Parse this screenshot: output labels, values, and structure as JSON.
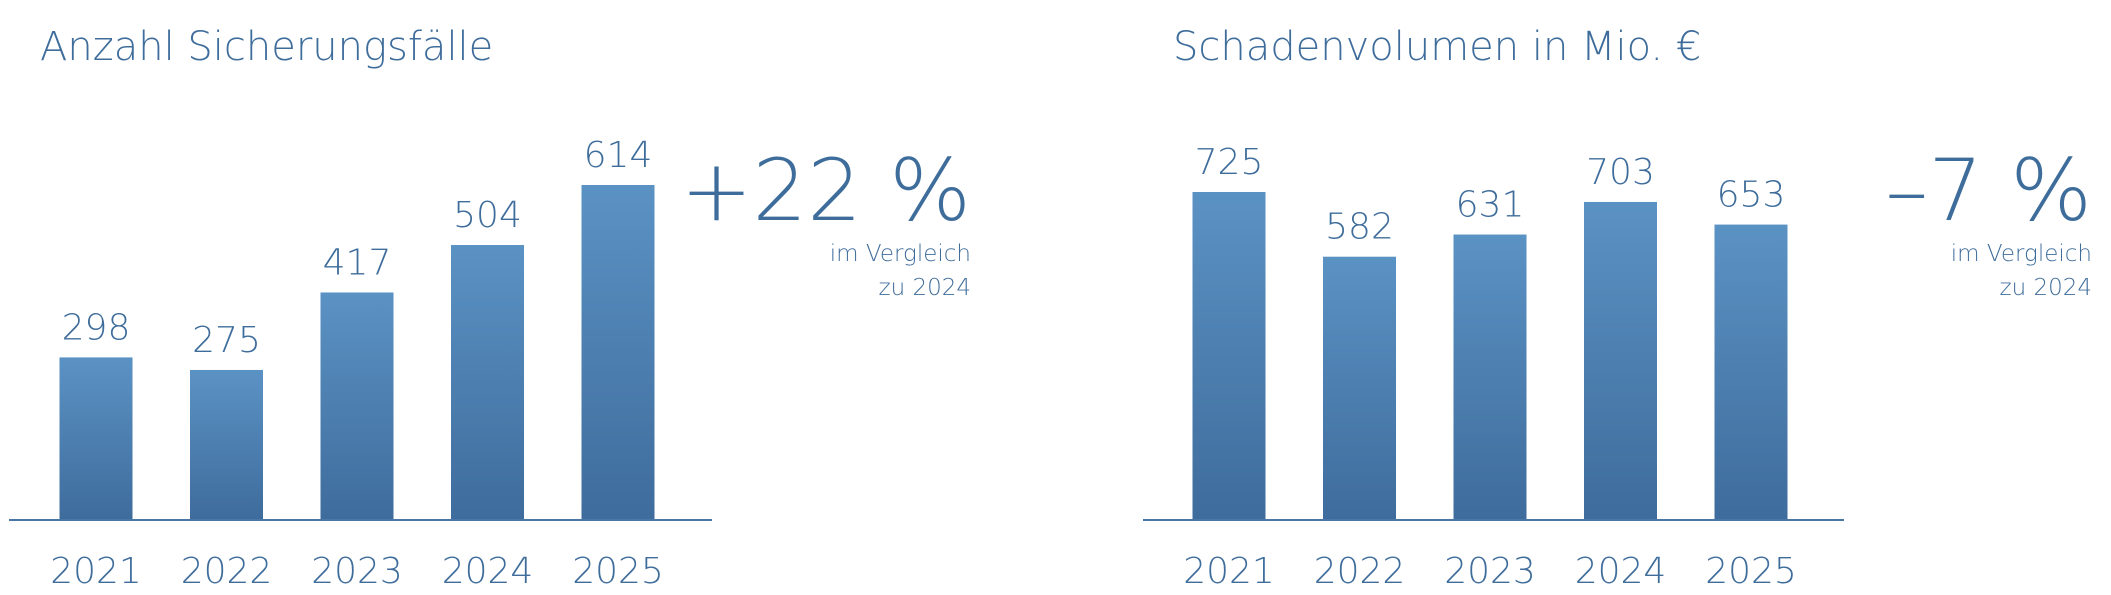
{
  "chart_data": [
    {
      "type": "bar",
      "title": "Anzahl Sicherungsfälle",
      "categories": [
        "2021",
        "2022",
        "2023",
        "2024",
        "2025"
      ],
      "values": [
        298,
        275,
        417,
        504,
        614
      ],
      "annotation": {
        "change": "+22 %",
        "note": [
          "im Vergleich",
          "zu 2024"
        ]
      }
    },
    {
      "type": "bar",
      "title": "Schadenvolumen in Mio. €",
      "categories": [
        "2021",
        "2022",
        "2023",
        "2024",
        "2025"
      ],
      "values": [
        725,
        582,
        631,
        703,
        653
      ],
      "annotation": {
        "change": "–7 %",
        "note": [
          "im Vergleich",
          "zu 2024"
        ]
      }
    }
  ]
}
